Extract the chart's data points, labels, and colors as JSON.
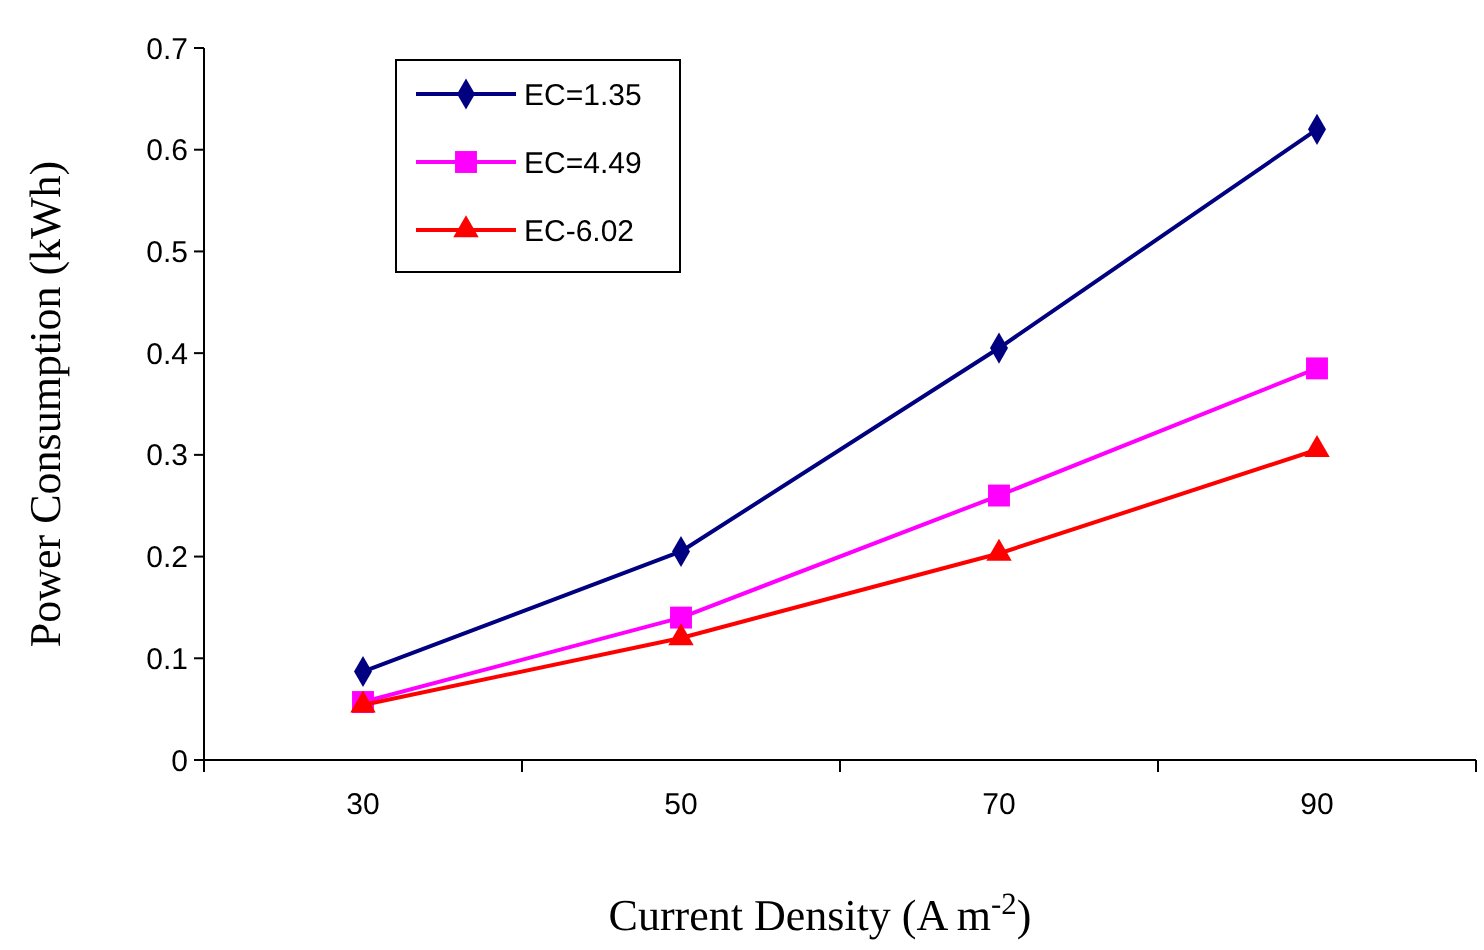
{
  "chart_data": {
    "type": "line",
    "xlabel": "Current Density (A m$^{-2}$)",
    "ylabel": "Power Consumption (kWh)",
    "categories": [
      "30",
      "50",
      "70",
      "90"
    ],
    "ylim": [
      0,
      0.7
    ],
    "yticks": [
      0,
      0.1,
      0.2,
      0.3,
      0.4,
      0.5,
      0.6,
      0.7
    ],
    "grid": false,
    "legend": "top left",
    "line_style": "solid",
    "series": [
      {
        "name": "EC=1.35",
        "color": "#000080",
        "marker": "diamond",
        "values": [
          0.087,
          0.205,
          0.405,
          0.62
        ]
      },
      {
        "name": "EC=4.49",
        "color": "#ff00ff",
        "marker": "square",
        "values": [
          0.057,
          0.14,
          0.26,
          0.385
        ]
      },
      {
        "name": "EC-6.02",
        "color": "#ff0000",
        "marker": "triangle",
        "values": [
          0.054,
          0.12,
          0.203,
          0.305
        ]
      }
    ]
  }
}
